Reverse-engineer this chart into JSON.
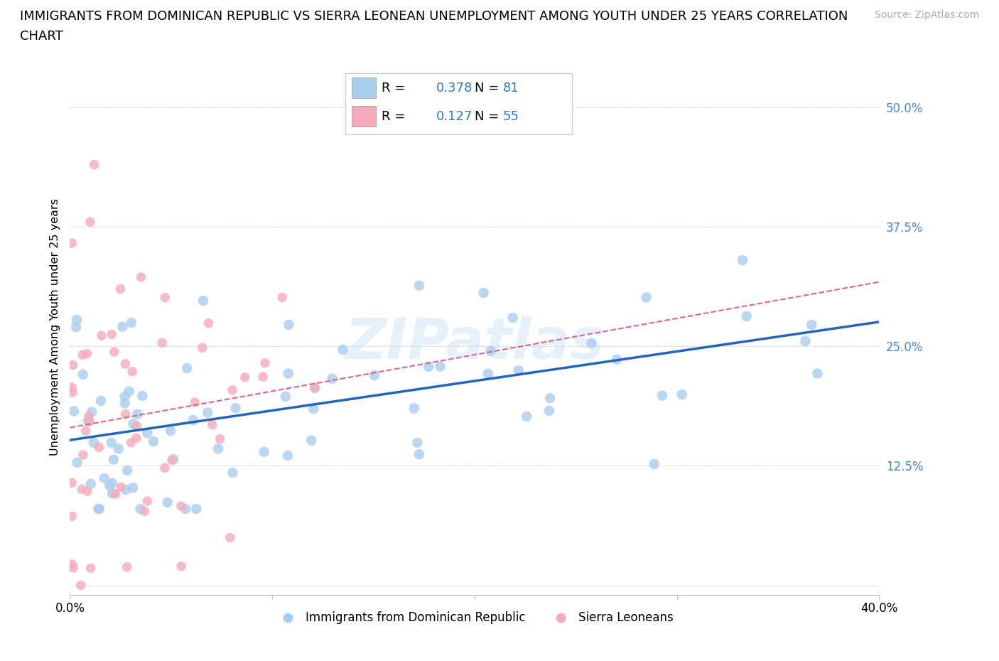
{
  "title_line1": "IMMIGRANTS FROM DOMINICAN REPUBLIC VS SIERRA LEONEAN UNEMPLOYMENT AMONG YOUTH UNDER 25 YEARS CORRELATION",
  "title_line2": "CHART",
  "source": "Source: ZipAtlas.com",
  "ylabel": "Unemployment Among Youth under 25 years",
  "xlim": [
    0.0,
    0.4
  ],
  "ylim": [
    -0.01,
    0.55
  ],
  "yticks": [
    0.0,
    0.125,
    0.25,
    0.375,
    0.5
  ],
  "ytick_labels": [
    "",
    "12.5%",
    "25.0%",
    "37.5%",
    "50.0%"
  ],
  "xticks": [
    0.0,
    0.1,
    0.2,
    0.3,
    0.4
  ],
  "xtick_labels": [
    "0.0%",
    "",
    "",
    "",
    "40.0%"
  ],
  "legend_blue_r": "0.378",
  "legend_blue_n": "81",
  "legend_pink_r": "0.127",
  "legend_pink_n": "55",
  "blue_color": "#aaccee",
  "blue_line_color": "#2266bb",
  "pink_color": "#f5aabb",
  "pink_line_color": "#dd6688",
  "watermark": "ZIPatlas",
  "blue_label": "Immigrants from Dominican Republic",
  "pink_label": "Sierra Leoneans"
}
